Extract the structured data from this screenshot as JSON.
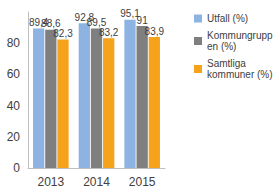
{
  "chart_data": {
    "type": "bar",
    "categories": [
      "2013",
      "2014",
      "2015"
    ],
    "series": [
      {
        "name": "Utfall (%)",
        "color": "#8db3e2",
        "values": [
          89.4,
          92.8,
          95.1
        ],
        "value_labels": [
          "89,4",
          "92,8",
          "95,1"
        ]
      },
      {
        "name": "Kommungruppen (%)",
        "color": "#7f7f7f",
        "values": [
          88.6,
          89.5,
          91
        ],
        "value_labels": [
          "88,6",
          "89,5",
          "91"
        ]
      },
      {
        "name": "Samtliga kommuner (%)",
        "color": "#f7a21b",
        "values": [
          82.3,
          83.2,
          83.9
        ],
        "value_labels": [
          "82,3",
          "83,2",
          "83,9"
        ]
      }
    ],
    "ylim": [
      0,
      100
    ],
    "yticks": [
      0,
      20,
      40,
      60,
      80
    ],
    "grid": false,
    "legend": "right",
    "data_labels": true
  }
}
